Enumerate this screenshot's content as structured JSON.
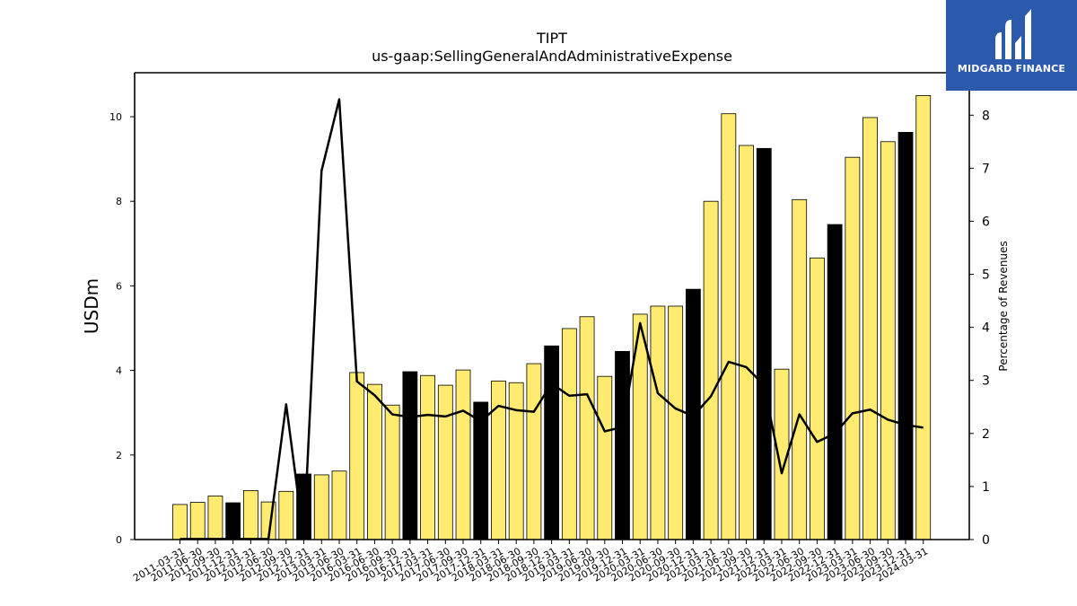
{
  "chart_data": {
    "type": "bar",
    "title": "TIPT",
    "subtitle": "us-gaap:SellingGeneralAndAdministrativeExpense",
    "ylabel": "USDm",
    "y2label": "Percentage of Revenues",
    "ylim": [
      0,
      11.04
    ],
    "y2lim": [
      0,
      8.8
    ],
    "yticks": [
      0,
      2,
      4,
      6,
      8,
      10
    ],
    "y2ticks": [
      0,
      1,
      2,
      3,
      4,
      5,
      6,
      7,
      8
    ],
    "bar_colors": {
      "quarter": "#ffeb70",
      "annual": "#000000"
    },
    "line_color": "#000000",
    "categories": [
      "2011-03-31",
      "2011-06-30",
      "2011-09-30",
      "2011-12-31",
      "2012-03-31",
      "2012-06-30",
      "2012-09-30",
      "2012-12-31",
      "2013-03-31",
      "2013-06-30",
      "2016-03-31",
      "2016-06-30",
      "2016-09-30",
      "2016-12-31",
      "2017-03-31",
      "2017-06-30",
      "2017-09-30",
      "2017-12-31",
      "2018-03-31",
      "2018-06-30",
      "2018-09-30",
      "2018-12-31",
      "2019-03-31",
      "2019-06-30",
      "2019-09-30",
      "2019-12-31",
      "2020-03-31",
      "2020-06-30",
      "2020-09-30",
      "2020-12-31",
      "2021-03-31",
      "2021-06-30",
      "2021-09-30",
      "2021-12-31",
      "2022-03-31",
      "2022-06-30",
      "2022-09-30",
      "2022-12-31",
      "2023-03-31",
      "2023-06-30",
      "2023-09-30",
      "2023-12-31",
      "2024-03-31"
    ],
    "series": [
      {
        "values": [
          0.83,
          0.88,
          1.03,
          0.87,
          1.16,
          0.89,
          1.14,
          1.55,
          1.53,
          1.62,
          3.95,
          3.67,
          3.18,
          3.97,
          3.88,
          3.65,
          4.01,
          3.25,
          3.75,
          3.71,
          4.16,
          4.58,
          4.99,
          5.27,
          3.86,
          4.45,
          5.33,
          5.52,
          5.52,
          5.92,
          8.0,
          10.07,
          9.32,
          9.25,
          4.03,
          8.04,
          6.66,
          7.45,
          9.04,
          9.98,
          9.41,
          9.63,
          10.5
        ],
        "annual": [
          false,
          false,
          false,
          true,
          false,
          false,
          false,
          true,
          false,
          false,
          false,
          false,
          false,
          true,
          false,
          false,
          false,
          true,
          false,
          false,
          false,
          true,
          false,
          false,
          false,
          true,
          false,
          false,
          false,
          true,
          false,
          false,
          false,
          true,
          false,
          false,
          false,
          true,
          false,
          false,
          false,
          true,
          false
        ]
      },
      {
        "name": "Percentage of Revenues",
        "axis": "right",
        "values": [
          0.01,
          0.01,
          0.01,
          0.01,
          0.01,
          0.01,
          2.55,
          0.01,
          6.95,
          8.3,
          2.98,
          2.72,
          2.36,
          2.31,
          2.35,
          2.32,
          2.43,
          2.23,
          2.52,
          2.44,
          2.41,
          2.94,
          2.71,
          2.74,
          2.04,
          2.12,
          4.08,
          2.76,
          2.47,
          2.33,
          2.7,
          3.35,
          3.25,
          2.91,
          1.25,
          2.36,
          1.84,
          2.0,
          2.38,
          2.45,
          2.26,
          2.16,
          2.11
        ]
      }
    ]
  },
  "logo": {
    "text": "MIDGARD FINANCE"
  }
}
